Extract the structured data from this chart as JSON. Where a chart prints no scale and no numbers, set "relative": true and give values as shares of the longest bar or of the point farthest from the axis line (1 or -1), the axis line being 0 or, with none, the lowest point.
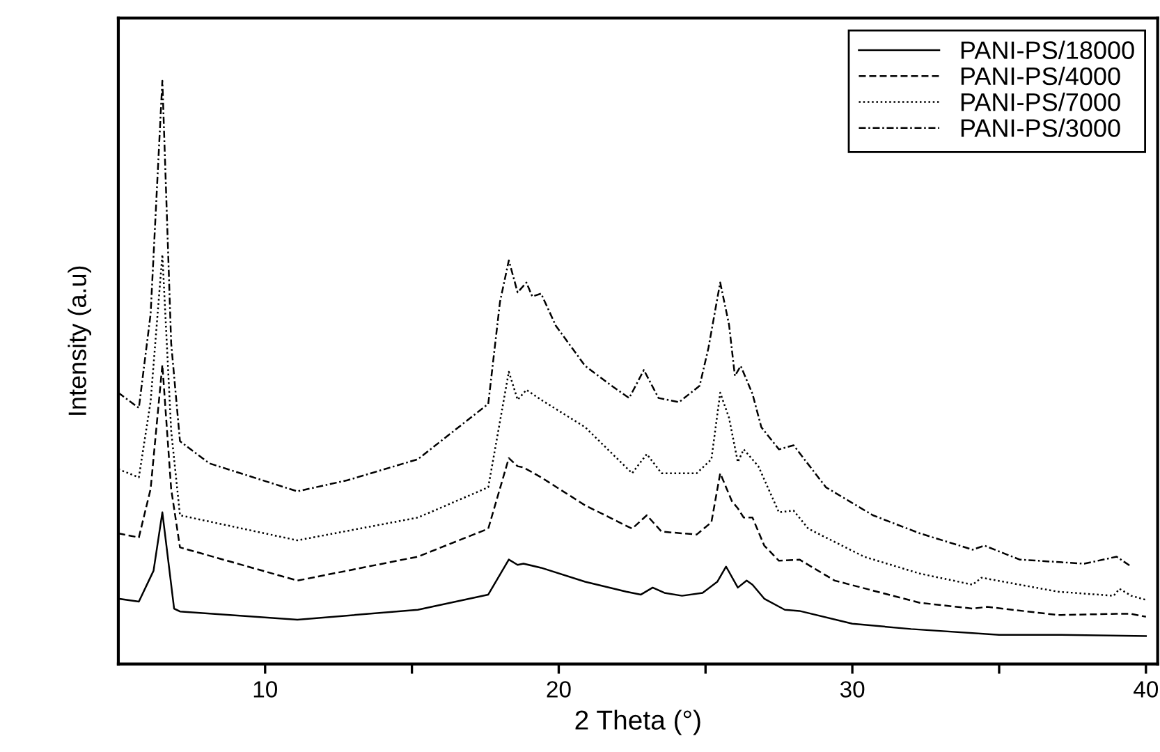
{
  "chart_data": {
    "type": "line",
    "relative": true,
    "xlabel": "2 Theta (°)",
    "ylabel": "Intensity (a.u)",
    "xlim": [
      5,
      40.4
    ],
    "xticks": [
      10,
      {
        "value": 15,
        "label": null
      },
      20,
      {
        "value": 25,
        "label": null
      },
      30,
      {
        "value": 35,
        "label": null
      },
      40
    ],
    "tick_labels": "x",
    "legend": "top right",
    "grid": false,
    "marker": "none",
    "series": [
      {
        "name": "PANI-PS/18000",
        "color": "#000000",
        "line_style": "solid",
        "x": [
          5.0,
          5.7,
          6.2,
          6.5,
          6.9,
          7.1,
          11.1,
          15.2,
          17.6,
          18.3,
          18.6,
          18.8,
          19.4,
          20.9,
          22.3,
          22.8,
          23.2,
          23.6,
          24.2,
          24.9,
          25.4,
          25.7,
          26.1,
          26.4,
          26.6,
          27.0,
          27.7,
          28.2,
          30.0,
          32.0,
          35.0,
          37.0,
          40.0
        ],
        "values": [
          0.112,
          0.107,
          0.16,
          0.26,
          0.095,
          0.09,
          0.076,
          0.093,
          0.119,
          0.179,
          0.17,
          0.172,
          0.165,
          0.141,
          0.124,
          0.119,
          0.131,
          0.122,
          0.117,
          0.122,
          0.141,
          0.167,
          0.131,
          0.143,
          0.136,
          0.112,
          0.093,
          0.091,
          0.069,
          0.06,
          0.05,
          0.05,
          0.048
        ]
      },
      {
        "name": "PANI-PS/4000",
        "color": "#000000",
        "line_style": "dashed",
        "x": [
          5.0,
          5.7,
          6.1,
          6.5,
          6.8,
          7.1,
          11.1,
          15.2,
          17.6,
          18.3,
          18.6,
          18.8,
          19.4,
          20.9,
          22.5,
          23.0,
          23.5,
          24.7,
          25.2,
          25.5,
          25.9,
          26.1,
          26.3,
          26.6,
          27.0,
          27.5,
          28.2,
          29.4,
          32.3,
          34.1,
          34.6,
          37.0,
          39.0,
          39.5,
          40.0
        ],
        "values": [
          0.224,
          0.217,
          0.3,
          0.513,
          0.3,
          0.2,
          0.143,
          0.184,
          0.232,
          0.353,
          0.339,
          0.337,
          0.32,
          0.272,
          0.232,
          0.255,
          0.227,
          0.222,
          0.243,
          0.327,
          0.279,
          0.267,
          0.251,
          0.251,
          0.203,
          0.177,
          0.179,
          0.143,
          0.105,
          0.095,
          0.098,
          0.084,
          0.086,
          0.086,
          0.081
        ]
      },
      {
        "name": "PANI-PS/7000",
        "color": "#000000",
        "line_style": "dotted",
        "x": [
          5.0,
          5.7,
          6.1,
          6.5,
          6.8,
          7.1,
          11.1,
          15.2,
          17.6,
          18.3,
          18.6,
          18.9,
          19.4,
          20.9,
          22.5,
          23.0,
          23.5,
          24.7,
          25.2,
          25.5,
          25.8,
          26.1,
          26.3,
          26.8,
          27.5,
          28.0,
          28.5,
          30.4,
          32.3,
          34.1,
          34.4,
          37.0,
          38.9,
          39.1,
          39.5,
          40.0
        ],
        "values": [
          0.334,
          0.32,
          0.45,
          0.702,
          0.4,
          0.255,
          0.212,
          0.251,
          0.303,
          0.501,
          0.453,
          0.47,
          0.453,
          0.406,
          0.327,
          0.36,
          0.327,
          0.327,
          0.351,
          0.465,
          0.422,
          0.346,
          0.368,
          0.339,
          0.26,
          0.263,
          0.232,
          0.184,
          0.155,
          0.136,
          0.148,
          0.124,
          0.117,
          0.129,
          0.117,
          0.11
        ]
      },
      {
        "name": "PANI-PS/3000",
        "color": "#000000",
        "line_style": "dashdot",
        "x": [
          5.0,
          5.7,
          6.1,
          6.5,
          6.8,
          7.1,
          8.1,
          11.1,
          12.8,
          15.2,
          17.6,
          18.0,
          18.3,
          18.6,
          18.9,
          19.1,
          19.4,
          19.9,
          20.9,
          21.8,
          22.4,
          22.9,
          23.4,
          24.1,
          24.8,
          25.1,
          25.5,
          25.8,
          26.0,
          26.2,
          26.6,
          26.9,
          27.5,
          28.0,
          29.1,
          30.7,
          32.3,
          34.1,
          34.5,
          35.7,
          37.9,
          39.0,
          39.5
        ],
        "values": [
          0.465,
          0.439,
          0.6,
          1.0,
          0.55,
          0.382,
          0.344,
          0.296,
          0.315,
          0.351,
          0.446,
          0.621,
          0.692,
          0.637,
          0.654,
          0.63,
          0.635,
          0.58,
          0.511,
          0.477,
          0.456,
          0.504,
          0.456,
          0.449,
          0.477,
          0.542,
          0.654,
          0.582,
          0.494,
          0.511,
          0.463,
          0.406,
          0.368,
          0.375,
          0.303,
          0.255,
          0.224,
          0.196,
          0.203,
          0.179,
          0.172,
          0.184,
          0.167
        ]
      }
    ]
  }
}
